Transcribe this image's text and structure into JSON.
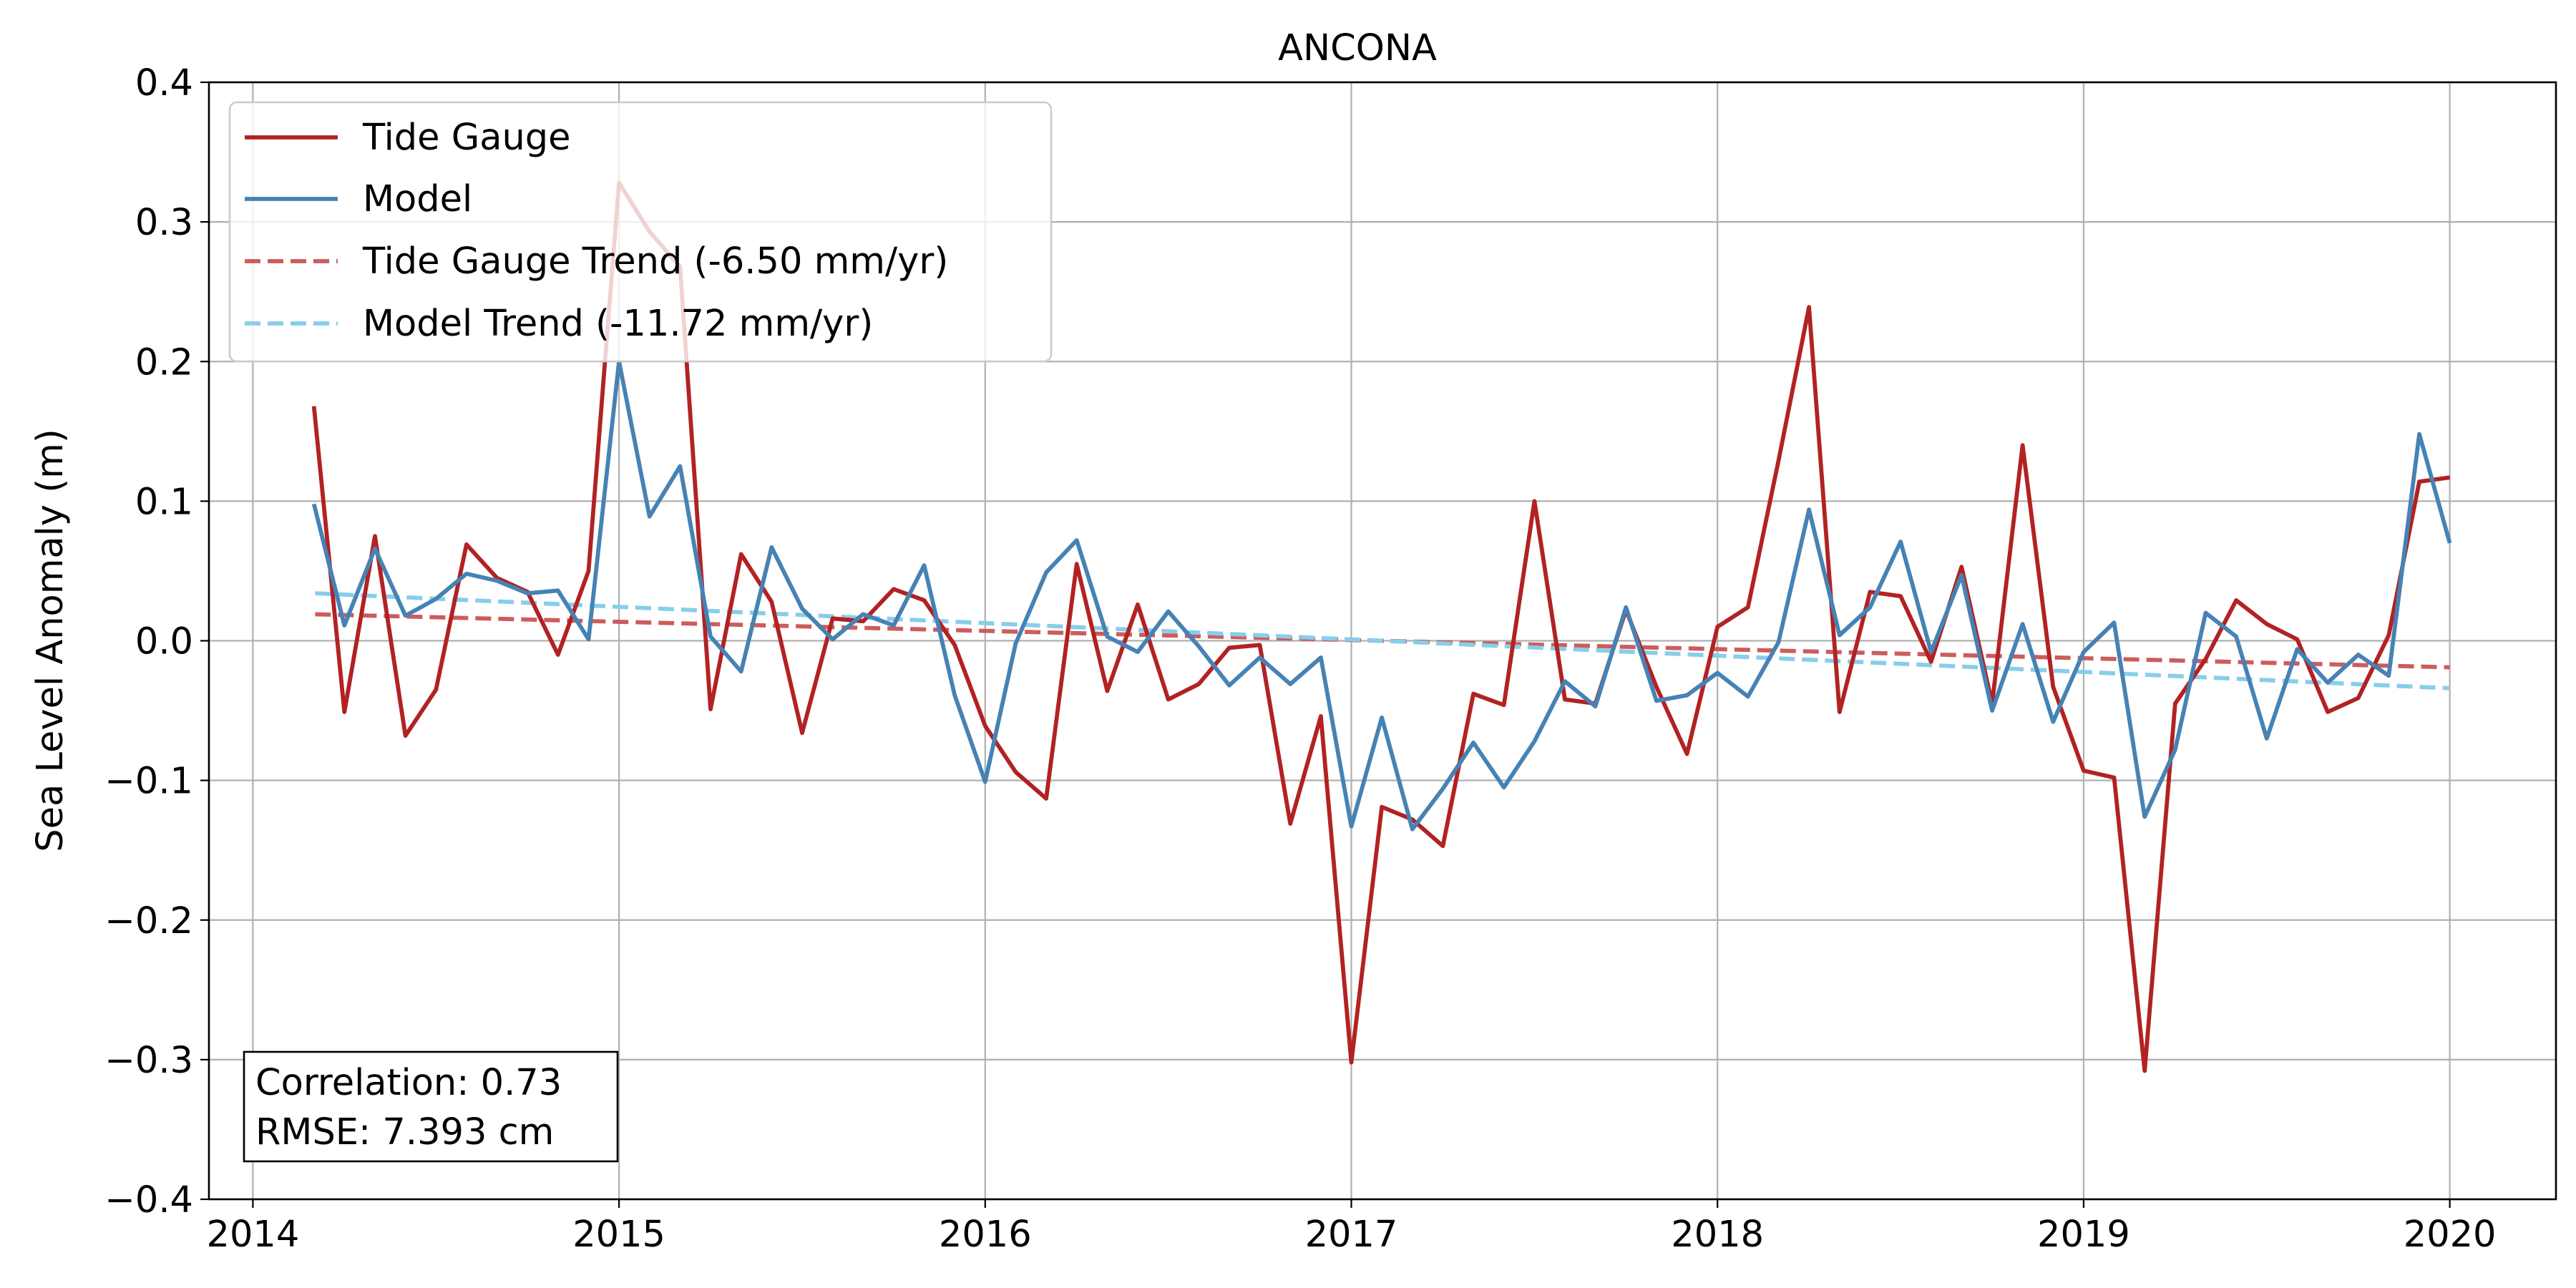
{
  "chart_data": {
    "type": "line",
    "title": "ANCONA",
    "xlabel": "",
    "ylabel": "Sea Level Anomaly (m)",
    "xlim": [
      2013.88,
      2020.29
    ],
    "ylim": [
      -0.4,
      0.4
    ],
    "xticks": [
      2014,
      2015,
      2016,
      2017,
      2018,
      2019,
      2020
    ],
    "xtick_labels": [
      "2014",
      "2015",
      "2016",
      "2017",
      "2018",
      "2019",
      "2020"
    ],
    "yticks": [
      -0.4,
      -0.3,
      -0.2,
      -0.1,
      0.0,
      0.1,
      0.2,
      0.3,
      0.4
    ],
    "ytick_labels": [
      "−0.4",
      "−0.3",
      "−0.2",
      "−0.1",
      "0.0",
      "0.1",
      "0.2",
      "0.3",
      "0.4"
    ],
    "grid": true,
    "legend_position": "top-left",
    "x": [
      "2014-03",
      "2014-04",
      "2014-05",
      "2014-06",
      "2014-07",
      "2014-08",
      "2014-09",
      "2014-10",
      "2014-11",
      "2014-12",
      "2015-01",
      "2015-02",
      "2015-03",
      "2015-04",
      "2015-05",
      "2015-06",
      "2015-07",
      "2015-08",
      "2015-09",
      "2015-10",
      "2015-11",
      "2015-12",
      "2016-01",
      "2016-02",
      "2016-03",
      "2016-04",
      "2016-05",
      "2016-06",
      "2016-07",
      "2016-08",
      "2016-09",
      "2016-10",
      "2016-11",
      "2016-12",
      "2017-01",
      "2017-02",
      "2017-03",
      "2017-04",
      "2017-05",
      "2017-06",
      "2017-07",
      "2017-08",
      "2017-09",
      "2017-10",
      "2017-11",
      "2017-12",
      "2018-01",
      "2018-02",
      "2018-03",
      "2018-04",
      "2018-05",
      "2018-06",
      "2018-07",
      "2018-08",
      "2018-09",
      "2018-10",
      "2018-11",
      "2018-12",
      "2019-01",
      "2019-02",
      "2019-03",
      "2019-04",
      "2019-05",
      "2019-06",
      "2019-07",
      "2019-08",
      "2019-09",
      "2019-10",
      "2019-11",
      "2019-12",
      "2020-01"
    ],
    "series": [
      {
        "name": "Tide Gauge",
        "color": "#b22222",
        "style": "solid",
        "values": [
          0.168,
          -0.051,
          0.075,
          -0.068,
          -0.035,
          0.069,
          0.045,
          0.035,
          -0.01,
          0.05,
          0.328,
          0.293,
          0.268,
          -0.049,
          0.062,
          0.028,
          -0.066,
          0.016,
          0.014,
          0.037,
          0.029,
          -0.003,
          -0.061,
          -0.094,
          -0.113,
          0.055,
          -0.036,
          0.026,
          -0.042,
          -0.031,
          -0.005,
          -0.003,
          -0.131,
          -0.054,
          -0.302,
          -0.119,
          -0.128,
          -0.147,
          -0.038,
          -0.046,
          0.1,
          -0.042,
          -0.045,
          0.022,
          -0.033,
          -0.081,
          0.01,
          0.024,
          0.129,
          0.239,
          -0.051,
          0.035,
          0.032,
          -0.015,
          0.053,
          -0.045,
          0.14,
          -0.033,
          -0.093,
          -0.098,
          -0.308,
          -0.045,
          -0.013,
          0.029,
          0.012,
          0.001,
          -0.051,
          -0.041,
          0.004,
          0.114,
          0.117
        ]
      },
      {
        "name": "Model",
        "color": "#4682b4",
        "style": "solid",
        "values": [
          0.098,
          0.011,
          0.066,
          0.018,
          0.03,
          0.048,
          0.043,
          0.034,
          0.036,
          0.001,
          0.2,
          0.089,
          0.125,
          0.003,
          -0.022,
          0.067,
          0.023,
          0.001,
          0.019,
          0.011,
          0.054,
          -0.039,
          -0.101,
          -0.002,
          0.049,
          0.072,
          0.003,
          -0.008,
          0.021,
          -0.004,
          -0.032,
          -0.012,
          -0.031,
          -0.012,
          -0.133,
          -0.055,
          -0.135,
          -0.106,
          -0.073,
          -0.105,
          -0.072,
          -0.029,
          -0.047,
          0.024,
          -0.043,
          -0.039,
          -0.023,
          -0.04,
          -0.001,
          0.094,
          0.004,
          0.024,
          0.071,
          -0.008,
          0.047,
          -0.05,
          0.012,
          -0.058,
          -0.008,
          0.013,
          -0.126,
          -0.078,
          0.02,
          0.003,
          -0.07,
          -0.006,
          -0.03,
          -0.01,
          -0.025,
          0.148,
          0.07
        ]
      }
    ],
    "trends": [
      {
        "name": "Tide Gauge Trend (-6.50 mm/yr)",
        "color": "#cd5c5c",
        "style": "dashed",
        "x": [
          2014.17,
          2020.0
        ],
        "y": [
          0.019,
          -0.019
        ]
      },
      {
        "name": "Model Trend (-11.72 mm/yr)",
        "color": "#87ceeb",
        "style": "dashed",
        "x": [
          2014.17,
          2020.0
        ],
        "y": [
          0.034,
          -0.034
        ]
      }
    ],
    "annotation": {
      "correlation": "Correlation: 0.73",
      "rmse": "RMSE: 7.393 cm"
    }
  }
}
